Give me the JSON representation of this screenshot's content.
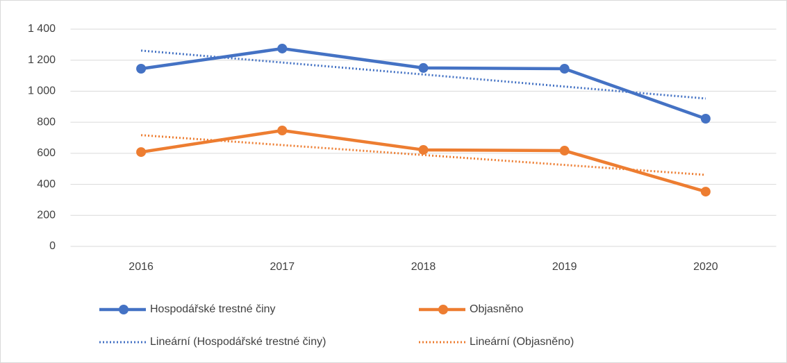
{
  "chart_data": {
    "type": "line",
    "categories": [
      "2016",
      "2017",
      "2018",
      "2019",
      "2020"
    ],
    "series": [
      {
        "name": "Hospodářské trestné činy",
        "color": "#4472c4",
        "style": "solid",
        "values": [
          1145,
          1275,
          1150,
          1145,
          823
        ]
      },
      {
        "name": "Objasněno",
        "color": "#ed7d31",
        "style": "solid",
        "values": [
          608,
          747,
          622,
          617,
          353
        ]
      },
      {
        "name": "Lineární (Hospodářské trestné činy)",
        "color": "#4472c4",
        "style": "dotted",
        "values": [
          1262,
          1185,
          1108,
          1030,
          953
        ]
      },
      {
        "name": "Lineární (Objasněno)",
        "color": "#ed7d31",
        "style": "dotted",
        "values": [
          717,
          653,
          589,
          525,
          461
        ]
      }
    ],
    "ylim": [
      0,
      1400
    ],
    "yticks": [
      0,
      200,
      400,
      600,
      800,
      {
        "value": 1000,
        "label": "1 000"
      },
      {
        "value": 1200,
        "label": "1 200"
      },
      {
        "value": 1400,
        "label": "1 400"
      }
    ],
    "grid": true
  }
}
